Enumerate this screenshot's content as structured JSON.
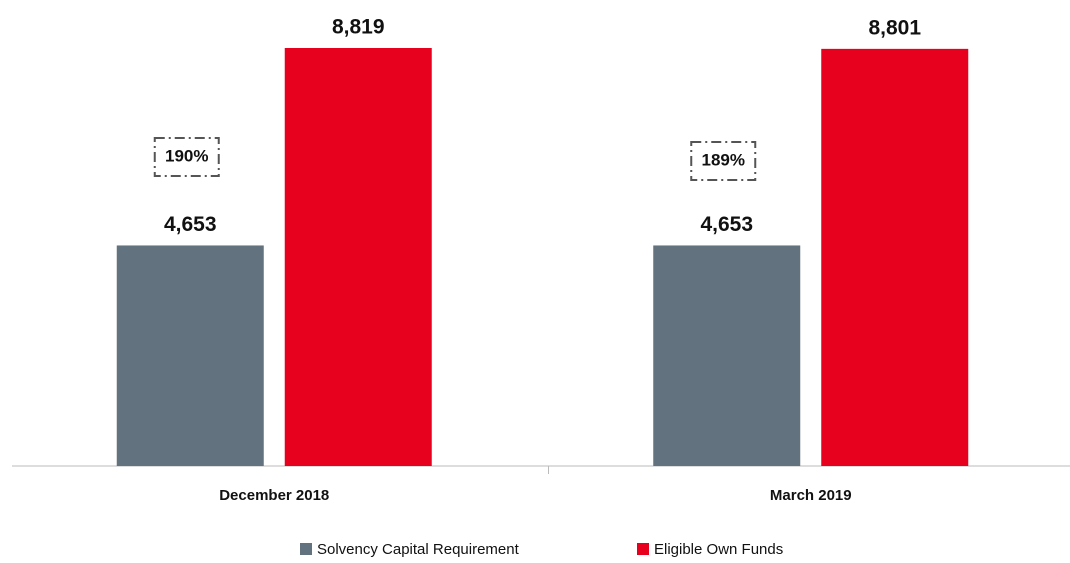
{
  "chart_data": {
    "type": "bar",
    "categories": [
      "December 2018",
      "March 2019"
    ],
    "series": [
      {
        "name": "Solvency Capital Requirement",
        "color": "#62727e",
        "values": [
          4653,
          4653
        ],
        "value_labels": [
          "4,653",
          "4,653"
        ]
      },
      {
        "name": "Eligible Own Funds",
        "color": "#e8001f",
        "values": [
          8819,
          8801
        ],
        "value_labels": [
          "8,819",
          "8,801"
        ]
      }
    ],
    "annotations": [
      "190%",
      "189%"
    ],
    "legend": "bottom"
  }
}
